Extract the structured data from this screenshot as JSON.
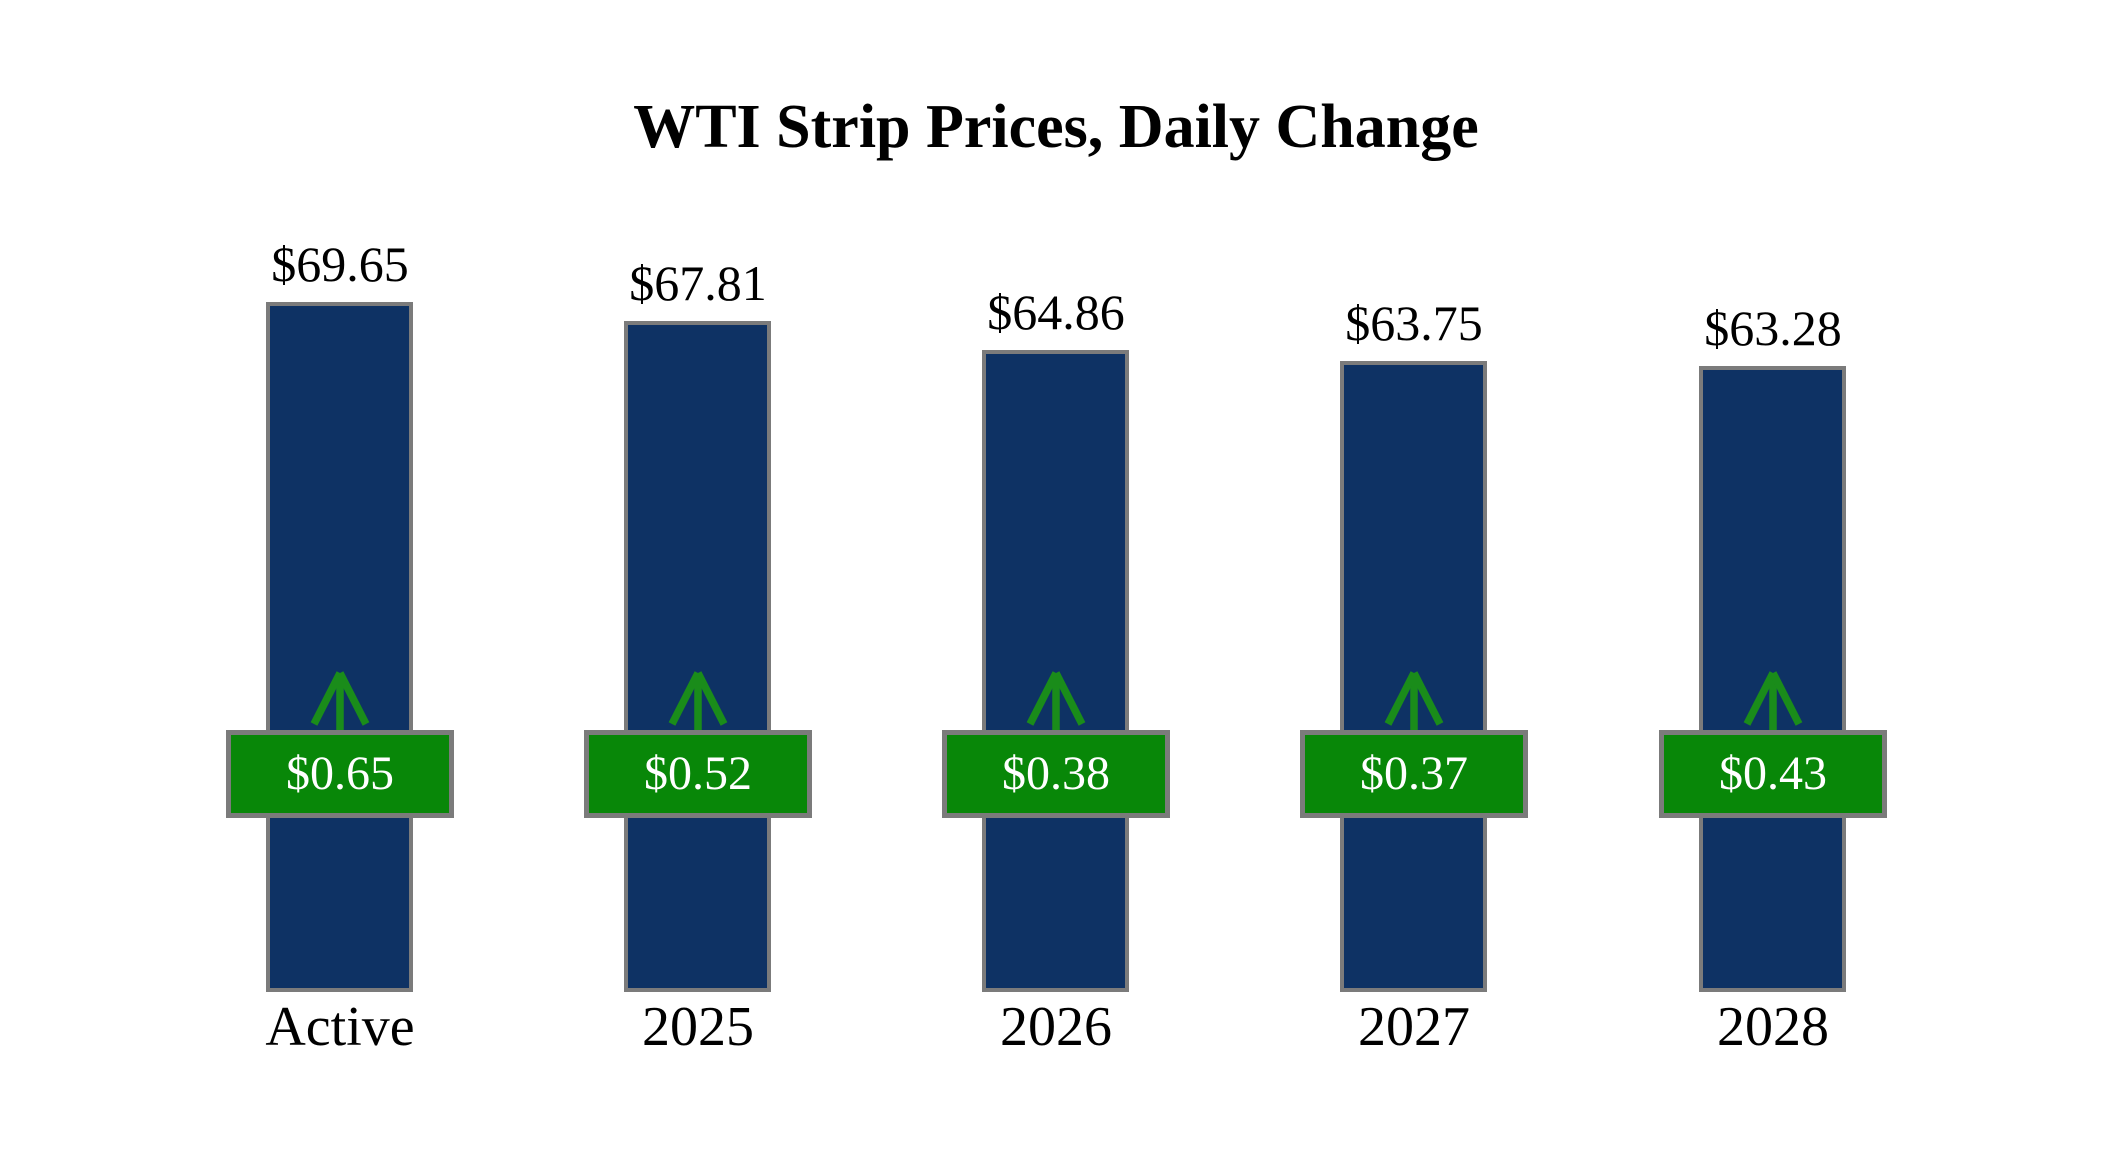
{
  "title": "WTI Strip Prices, Daily Change",
  "colors": {
    "background": "#FFFFFF",
    "bar": "#0E3264",
    "badge": "#088708",
    "arrow": "#1A8C1A",
    "border_gray": "#7B7B7B",
    "text": "#000000",
    "badge_text": "#FFFFFF"
  },
  "chart_data": {
    "type": "bar",
    "title": "WTI Strip Prices, Daily Change",
    "categories": [
      "Active",
      "2025",
      "2026",
      "2027",
      "2028"
    ],
    "values": [
      69.65,
      67.81,
      64.86,
      63.75,
      63.28
    ],
    "value_labels": [
      "$69.65",
      "$67.81",
      "$64.86",
      "$63.75",
      "$63.28"
    ],
    "changes": [
      0.65,
      0.52,
      0.38,
      0.37,
      0.43
    ],
    "change_labels": [
      "$0.65",
      "$0.52",
      "$0.38",
      "$0.37",
      "$0.43"
    ],
    "change_direction": "up",
    "xlabel": "",
    "ylabel": "",
    "ylim": [
      0,
      72
    ],
    "grid": false,
    "legend": false
  }
}
